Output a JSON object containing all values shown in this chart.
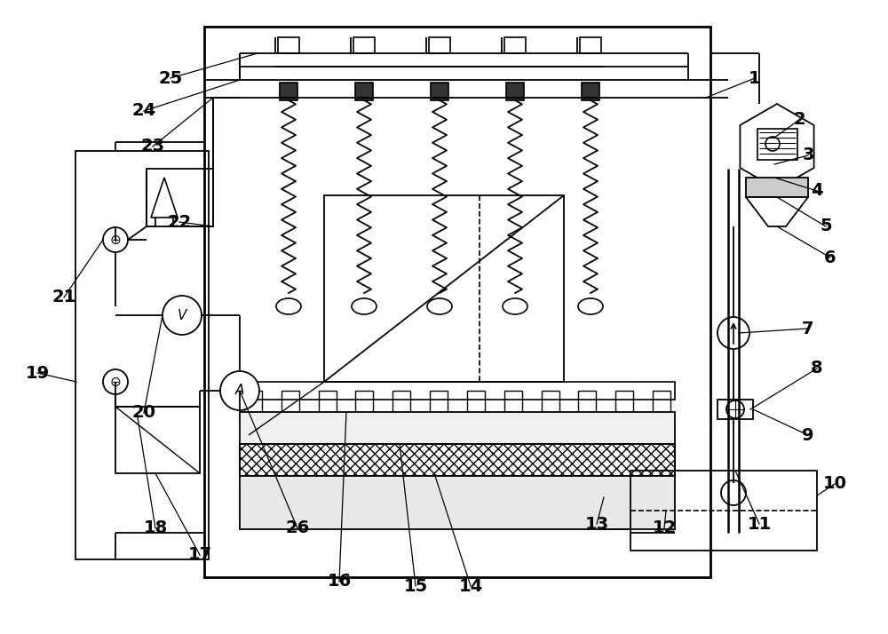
{
  "fig_width": 10.0,
  "fig_height": 7.14,
  "dpi": 100,
  "bg_color": "#ffffff",
  "lc": "#000000",
  "lw": 1.3
}
